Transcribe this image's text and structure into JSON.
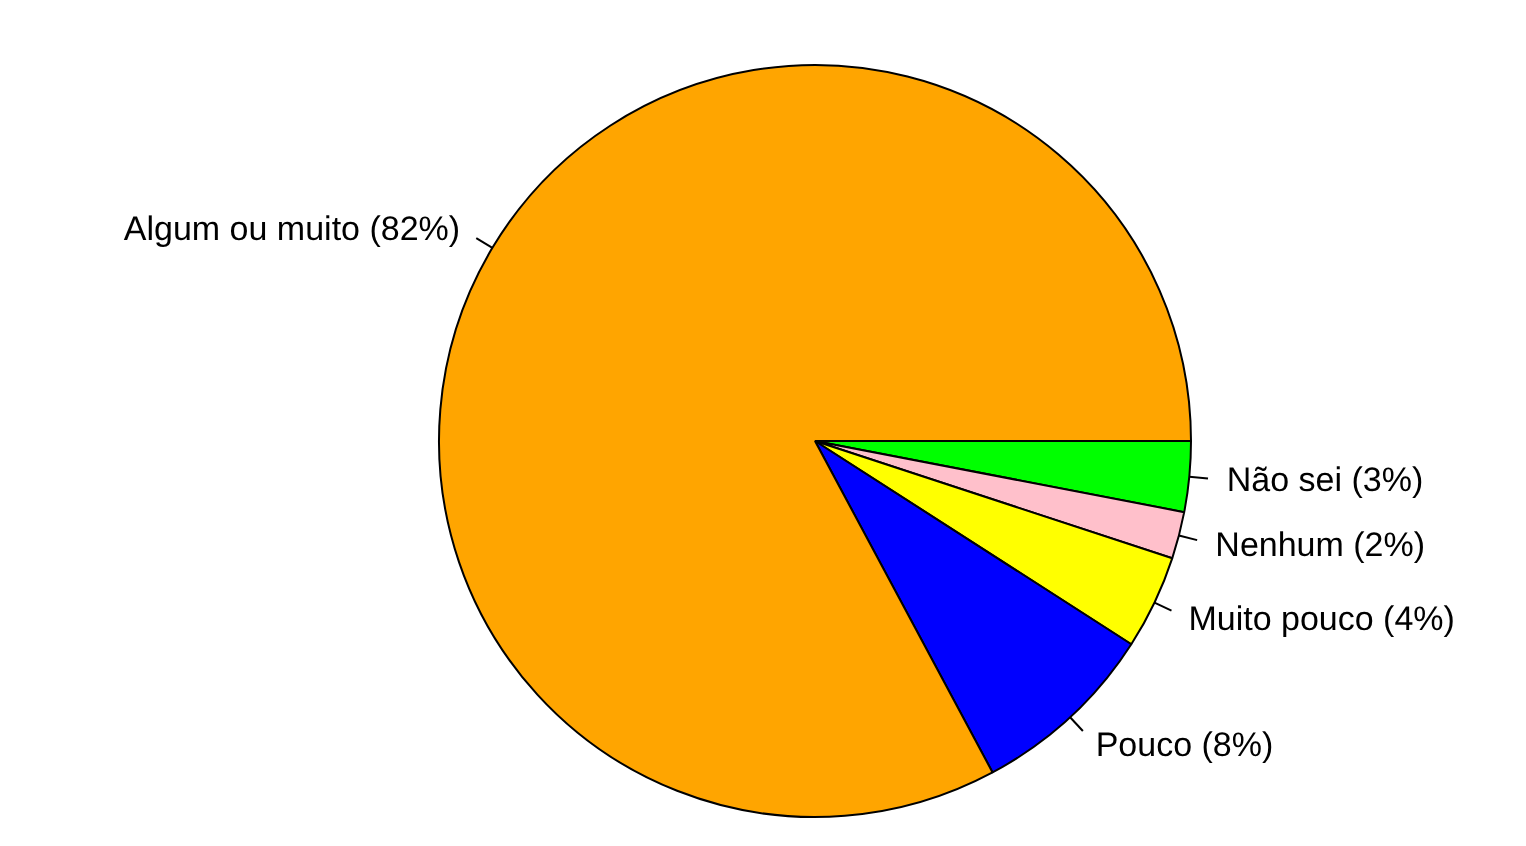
{
  "chart_data": {
    "type": "pie",
    "categories": [
      "Não sei (3%)",
      "Nenhum (2%)",
      "Muito pouco (4%)",
      "Pouco (8%)",
      "Algum ou muito (82%)"
    ],
    "values": [
      3,
      2,
      4,
      8,
      82
    ],
    "colors": [
      "#00ff00",
      "#ffc0cb",
      "#ffff00",
      "#0000ff",
      "#ffa500"
    ]
  }
}
